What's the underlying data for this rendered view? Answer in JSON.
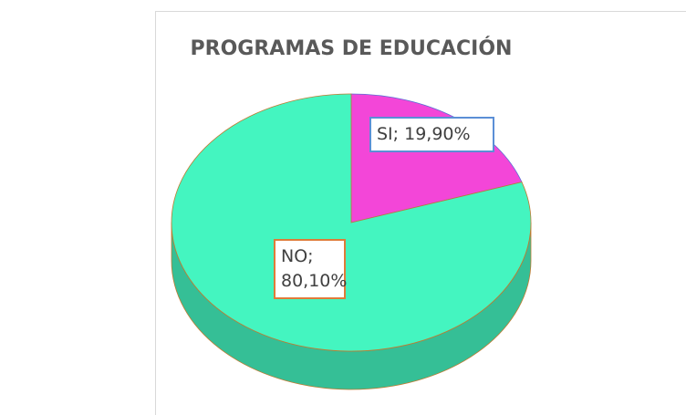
{
  "chart_data": {
    "type": "pie",
    "title": "PROGRAMAS DE EDUCACIÓN",
    "categories": [
      "SI",
      "NO"
    ],
    "values": [
      19.9,
      80.1
    ],
    "value_labels": [
      "SI; 19,90%",
      "NO; 80,10%"
    ],
    "colors": [
      "#f346d8",
      "#44f5c0"
    ]
  }
}
